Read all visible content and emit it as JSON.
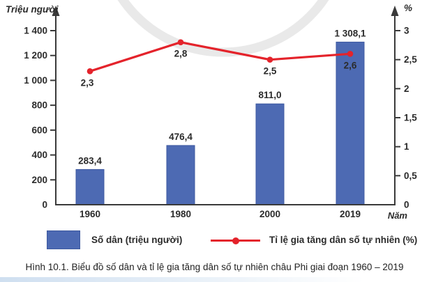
{
  "colors": {
    "bar": "#4d6ab3",
    "bar_border": "#3e59a0",
    "line": "#e4232b",
    "axis": "#3a3a3a",
    "text": "#2b2b2b",
    "watermark": "#e9e9e9"
  },
  "chart_data": {
    "type": "combo-bar-line",
    "categories": [
      "1960",
      "1980",
      "2000",
      "2019"
    ],
    "series": [
      {
        "name": "Số dân (triệu người)",
        "type": "bar",
        "axis": "left",
        "values": [
          283.4,
          476.4,
          811.0,
          1308.1
        ],
        "value_labels": [
          "283,4",
          "476,4",
          "811,0",
          "1 308,1"
        ]
      },
      {
        "name": "Tỉ lệ gia tăng dân số tự nhiên (%)",
        "type": "line",
        "axis": "right",
        "values": [
          2.3,
          2.8,
          2.5,
          2.6
        ],
        "value_labels": [
          "2,3",
          "2,8",
          "2,5",
          "2,6"
        ]
      }
    ],
    "left_axis": {
      "title": "Triệu người",
      "min": 0,
      "max": 1400,
      "tick_values": [
        0,
        200,
        400,
        600,
        800,
        1000,
        1200,
        1400
      ],
      "tick_labels": [
        "0",
        "200",
        "400",
        "600",
        "800",
        "1 000",
        "1 200",
        "1 400"
      ]
    },
    "right_axis": {
      "title": "%",
      "min": 0,
      "max": 3,
      "tick_values": [
        0,
        0.5,
        1,
        1.5,
        2,
        2.5,
        3
      ],
      "tick_labels": [
        "0",
        "0,5",
        "1",
        "1,5",
        "2",
        "2,5",
        "3"
      ]
    },
    "x_axis": {
      "title": "Năm"
    },
    "grid": false,
    "legend_position": "bottom"
  },
  "legend": {
    "bar_label": "Số dân (triệu người)",
    "line_label": "Tỉ lệ gia tăng dân số tự nhiên (%)"
  },
  "caption": "Hình 10.1. Biểu đồ số dân và tỉ lệ gia tăng dân số tự nhiên châu Phi giai đoạn 1960 – 2019"
}
